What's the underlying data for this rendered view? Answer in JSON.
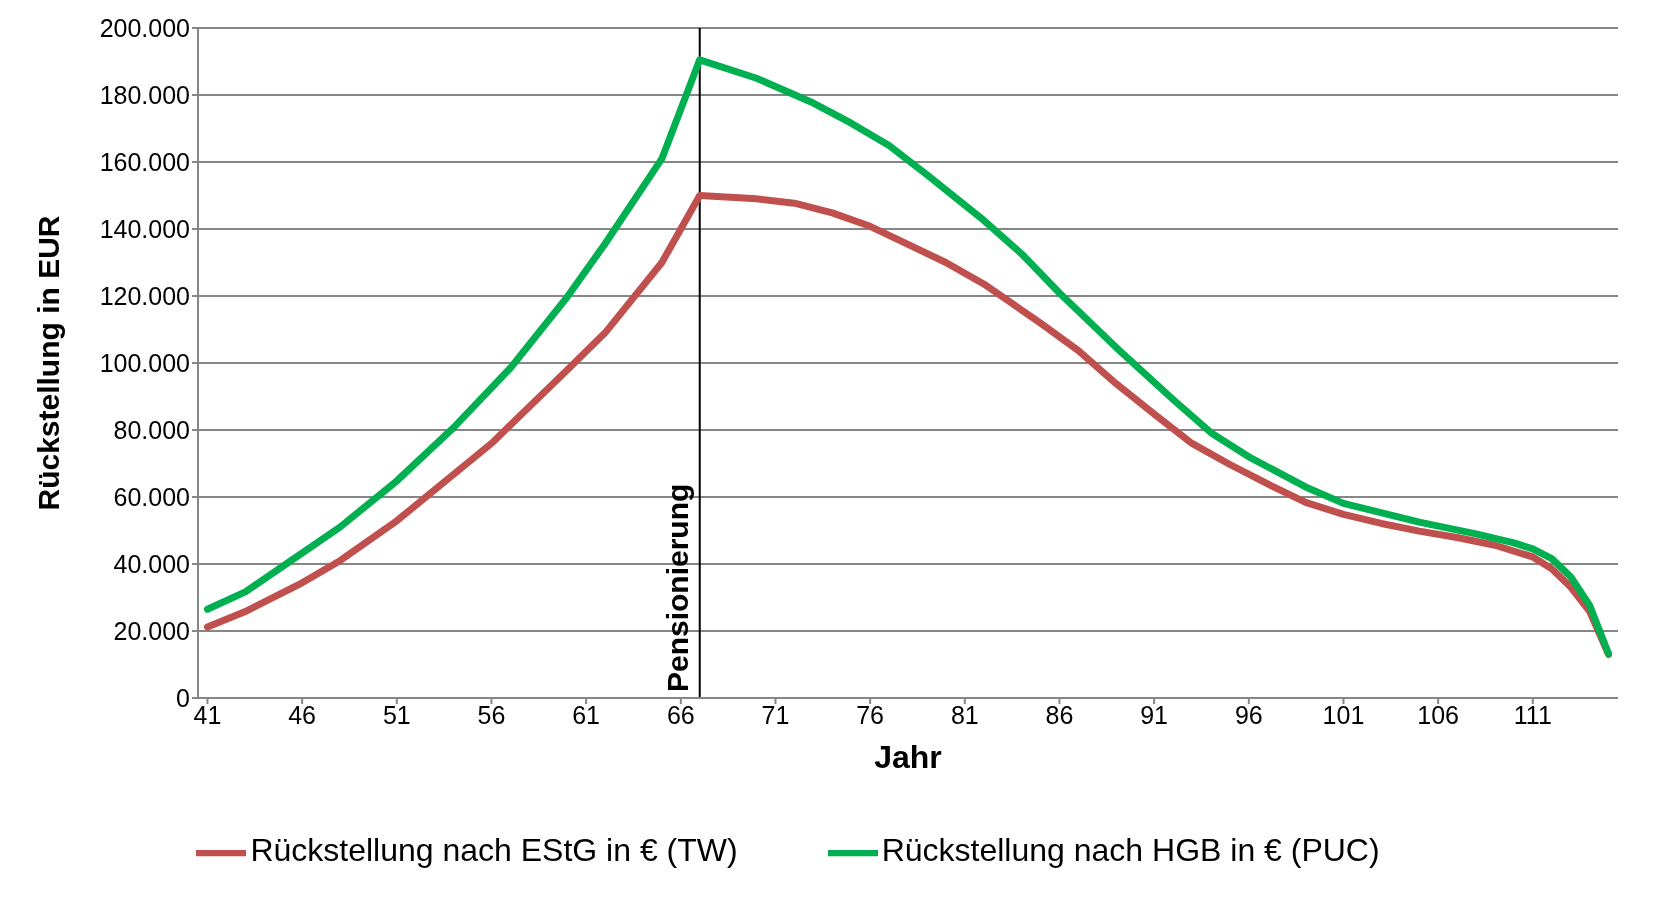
{
  "chart_data": {
    "type": "line",
    "xlabel": "Jahr",
    "ylabel": "Rückstellung in EUR",
    "xlim": [
      40.5,
      115.5
    ],
    "xticks": [
      41,
      46,
      51,
      56,
      61,
      66,
      71,
      76,
      81,
      86,
      91,
      96,
      101,
      106,
      111
    ],
    "ylim": [
      0,
      200000
    ],
    "yticks": [
      {
        "value": 0,
        "label": "0"
      },
      {
        "value": 20000,
        "label": "20.000"
      },
      {
        "value": 40000,
        "label": "40.000"
      },
      {
        "value": 60000,
        "label": "60.000"
      },
      {
        "value": 80000,
        "label": "80.000"
      },
      {
        "value": 100000,
        "label": "100.000"
      },
      {
        "value": 120000,
        "label": "120.000"
      },
      {
        "value": 140000,
        "label": "140.000"
      },
      {
        "value": 160000,
        "label": "160.000"
      },
      {
        "value": 180000,
        "label": "180.000"
      },
      {
        "value": 200000,
        "label": "200.000"
      }
    ],
    "grid": "y",
    "legend": "bottom",
    "marker": "none",
    "line_style": "solid",
    "ref_lines": [
      {
        "axis": "x",
        "value": 67,
        "label": "Pensionierung",
        "color": "#000000"
      }
    ],
    "series": [
      {
        "name": "Rückstellung nach EStG in € (TW)",
        "color": "#c0504d",
        "x": [
          41,
          43,
          46,
          48,
          51,
          56,
          60,
          62,
          65,
          67,
          70,
          72,
          74,
          76,
          78,
          80,
          82,
          85,
          87,
          89,
          91,
          93,
          95,
          97,
          99,
          101,
          103,
          105,
          107,
          109,
          111,
          112,
          113,
          114,
          115
        ],
        "values": [
          21200,
          25800,
          34400,
          41000,
          52900,
          76000,
          97900,
          109000,
          130000,
          150000,
          149000,
          147700,
          144800,
          140800,
          135400,
          130000,
          123600,
          111900,
          103700,
          93800,
          84800,
          76000,
          69700,
          63900,
          58400,
          54800,
          52100,
          49800,
          47900,
          45600,
          42100,
          38600,
          33100,
          25900,
          13000
        ]
      },
      {
        "name": "Rückstellung nach HGB in € (PUC)",
        "color": "#00b050",
        "x": [
          41,
          43,
          45,
          48,
          51,
          54,
          57,
          60,
          62,
          65,
          67,
          70,
          73,
          75,
          77,
          79,
          82,
          84,
          86,
          89,
          92,
          94,
          96,
          99,
          101,
          105,
          108,
          110,
          111,
          112,
          113,
          114,
          115
        ],
        "values": [
          26500,
          31700,
          39400,
          51000,
          64800,
          80700,
          98500,
          119700,
          135600,
          161000,
          190500,
          185000,
          177600,
          171600,
          164900,
          156200,
          142600,
          132600,
          120900,
          104600,
          89100,
          79200,
          72000,
          63000,
          58100,
          52500,
          49000,
          46300,
          44500,
          41600,
          36200,
          27700,
          13200
        ]
      }
    ]
  }
}
